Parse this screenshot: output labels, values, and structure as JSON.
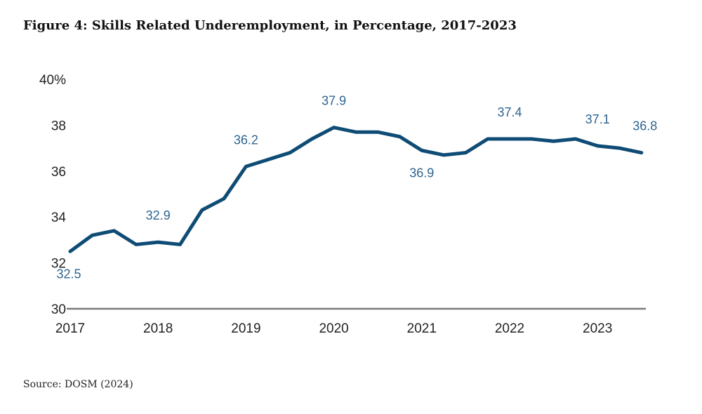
{
  "chart_data": {
    "type": "line",
    "title": "Figure 4: Skills Related Underemployment, in Percentage, 2017-2023",
    "source": "Source: DOSM (2024)",
    "xlabel": "",
    "ylabel": "",
    "ylim": [
      30,
      40
    ],
    "y_ticks": [
      "30",
      "32",
      "34",
      "36",
      "38",
      "40%"
    ],
    "y_tick_values": [
      30,
      32,
      34,
      36,
      38,
      40
    ],
    "x_ticks": [
      "2017",
      "2018",
      "2019",
      "2020",
      "2021",
      "2022",
      "2023"
    ],
    "x_tick_index": [
      0,
      4,
      8,
      12,
      16,
      20,
      24
    ],
    "grid": false,
    "frequency": "quarterly",
    "series": [
      {
        "name": "Skills related underemployment (%)",
        "color": "#0f4c75",
        "x": [
          "2017Q1",
          "2017Q2",
          "2017Q3",
          "2017Q4",
          "2018Q1",
          "2018Q2",
          "2018Q3",
          "2018Q4",
          "2019Q1",
          "2019Q2",
          "2019Q3",
          "2019Q4",
          "2020Q1",
          "2020Q2",
          "2020Q3",
          "2020Q4",
          "2021Q1",
          "2021Q2",
          "2021Q3",
          "2021Q4",
          "2022Q1",
          "2022Q2",
          "2022Q3",
          "2022Q4",
          "2023Q1",
          "2023Q2",
          "2023Q3"
        ],
        "values": [
          32.5,
          33.2,
          33.4,
          32.8,
          32.9,
          32.8,
          34.3,
          34.8,
          36.2,
          36.5,
          36.8,
          37.4,
          37.9,
          37.7,
          37.7,
          37.5,
          36.9,
          36.7,
          36.8,
          37.4,
          37.4,
          37.4,
          37.3,
          37.4,
          37.1,
          37.0,
          36.8
        ]
      }
    ],
    "annotations": [
      {
        "index": 0,
        "text": "32.5",
        "position": "below"
      },
      {
        "index": 4,
        "text": "32.9",
        "position": "above"
      },
      {
        "index": 8,
        "text": "36.2",
        "position": "above"
      },
      {
        "index": 12,
        "text": "37.9",
        "position": "above"
      },
      {
        "index": 16,
        "text": "36.9",
        "position": "below"
      },
      {
        "index": 20,
        "text": "37.4",
        "position": "above"
      },
      {
        "index": 24,
        "text": "37.1",
        "position": "above"
      },
      {
        "index": 26,
        "text": "36.8",
        "position": "above"
      }
    ],
    "label_color": "#2e6491"
  }
}
